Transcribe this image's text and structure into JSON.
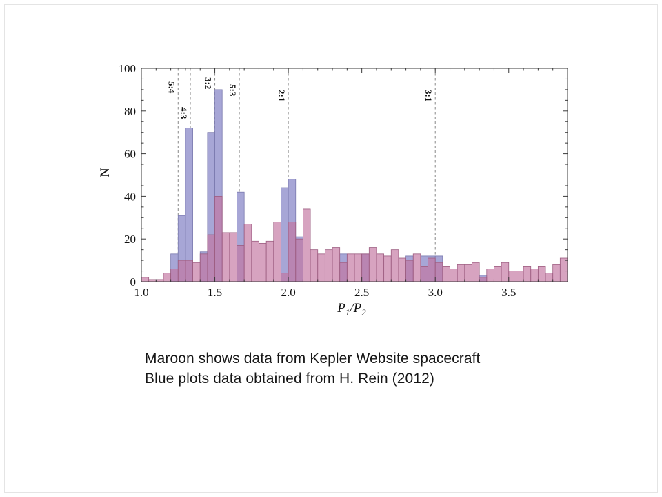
{
  "slide": {
    "caption_line1": "Maroon shows data from Kepler Website spacecraft",
    "caption_line2": "Blue plots data obtained from H. Rein (2012)"
  },
  "chart_data": {
    "type": "bar",
    "subtype": "overlaid-histogram",
    "title": "",
    "ylabel": "N",
    "xlabel": "P1/P2",
    "xlabel_parts": {
      "a": "P",
      "a_sub": "1",
      "sep": "/",
      "b": "P",
      "b_sub": "2"
    },
    "xlim": [
      1.0,
      3.9
    ],
    "ylim": [
      0,
      100
    ],
    "x_ticks": [
      1.0,
      1.5,
      2.0,
      2.5,
      3.0,
      3.5
    ],
    "x_tick_labels": [
      "1.0",
      "1.5",
      "2.0",
      "2.5",
      "3.0",
      "3.5"
    ],
    "x_minor_step": 0.1,
    "y_ticks": [
      0,
      20,
      40,
      60,
      80,
      100
    ],
    "y_minor_step": 5,
    "grid": false,
    "legend_position": "none",
    "bin_start": 1.0,
    "bin_width": 0.05,
    "series": [
      {
        "name": "Kepler Website spacecraft (maroon)",
        "color": "#d9a4bd",
        "edge_color": "#9c5d80",
        "values": [
          2,
          1,
          1,
          4,
          6,
          10,
          10,
          9,
          13,
          22,
          40,
          23,
          23,
          17,
          27,
          19,
          18,
          19,
          28,
          4,
          28,
          20,
          34,
          15,
          13,
          15,
          16,
          9,
          13,
          13,
          13,
          16,
          13,
          12,
          15,
          11,
          10,
          13,
          7,
          11,
          9,
          7,
          6,
          8,
          8,
          9,
          2,
          6,
          7,
          9,
          5,
          5,
          7,
          6,
          7,
          4,
          8,
          11
        ]
      },
      {
        "name": "H. Rein 2012 (blue)",
        "color": "#a7a6d6",
        "edge_color": "#7a79ae",
        "values": [
          0,
          0,
          0,
          0,
          13,
          31,
          72,
          0,
          14,
          70,
          90,
          0,
          0,
          42,
          0,
          0,
          0,
          0,
          0,
          44,
          48,
          21,
          0,
          0,
          0,
          0,
          0,
          13,
          0,
          0,
          13,
          0,
          0,
          0,
          0,
          0,
          12,
          0,
          12,
          12,
          12,
          0,
          0,
          0,
          0,
          0,
          3,
          0,
          0,
          0,
          0,
          0,
          0,
          0,
          0,
          0,
          0,
          0
        ]
      }
    ],
    "resonances": [
      {
        "label": "5:4",
        "x": 1.25
      },
      {
        "label": "4:3",
        "x": 1.3333
      },
      {
        "label": "3:2",
        "x": 1.5
      },
      {
        "label": "5:3",
        "x": 1.6667
      },
      {
        "label": "2:1",
        "x": 2.0
      },
      {
        "label": "3:1",
        "x": 3.0
      }
    ],
    "annotation_color": "#888888"
  }
}
